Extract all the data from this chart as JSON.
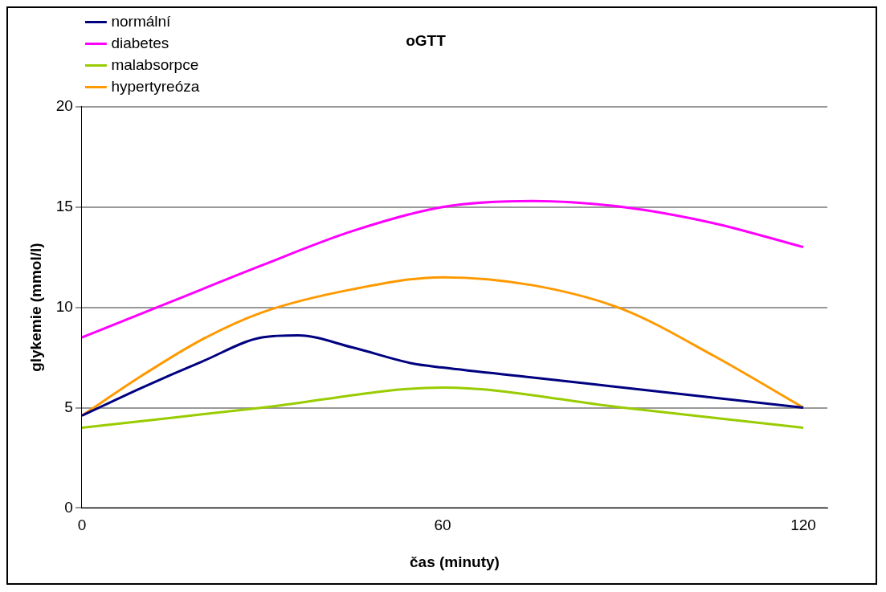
{
  "chart_data": {
    "type": "line",
    "title": "oGTT",
    "xlabel": "čas (minuty)",
    "ylabel": "glykemie (mmol/l)",
    "xlim": [
      0,
      124
    ],
    "xticks": [
      0,
      60,
      120
    ],
    "ylim": [
      0,
      20
    ],
    "yticks": [
      0,
      5,
      10,
      15,
      20
    ],
    "grid": "y",
    "legend": "top left",
    "marker": "none",
    "line_style": "solid",
    "series": [
      {
        "name": "normální",
        "color": "#000080",
        "x": [
          0,
          10,
          20,
          30,
          36,
          45,
          55,
          60,
          75,
          90,
          105,
          120
        ],
        "values": [
          4.6,
          6.0,
          7.3,
          8.5,
          8.6,
          8.0,
          7.2,
          7.0,
          6.5,
          6.0,
          5.5,
          5.0
        ]
      },
      {
        "name": "diabetes",
        "color": "#ff00ff",
        "x": [
          0,
          15,
          30,
          45,
          60,
          75,
          90,
          105,
          120
        ],
        "values": [
          8.5,
          10.3,
          12.1,
          13.8,
          15.0,
          15.3,
          15.0,
          14.2,
          13.0
        ]
      },
      {
        "name": "malabsorpce",
        "color": "#99cc00",
        "x": [
          0,
          30,
          60,
          90,
          120
        ],
        "values": [
          4.0,
          5.0,
          6.0,
          5.0,
          4.0
        ]
      },
      {
        "name": "hypertyreóza",
        "color": "#ff9900",
        "x": [
          0,
          10,
          20,
          30,
          45,
          60,
          75,
          90,
          105,
          120
        ],
        "values": [
          4.6,
          6.6,
          8.4,
          9.75,
          10.9,
          11.5,
          11.1,
          9.9,
          7.6,
          5.0
        ]
      }
    ]
  }
}
